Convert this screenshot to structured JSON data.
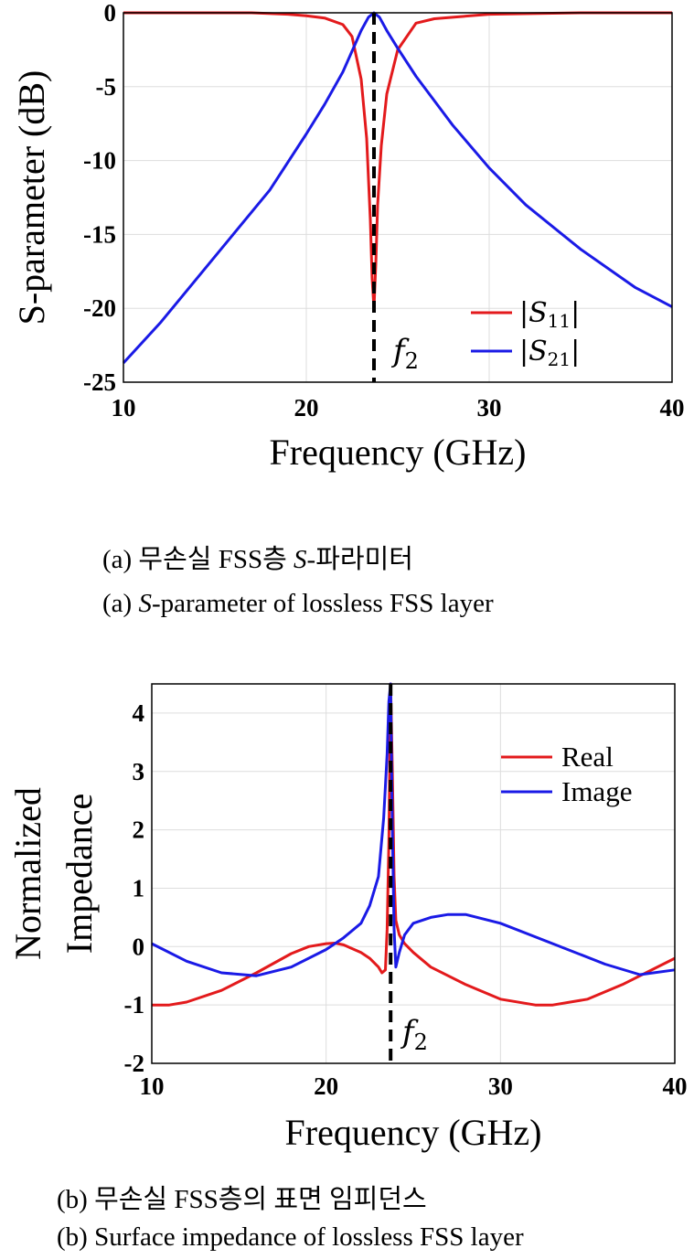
{
  "chart_data": [
    {
      "type": "line",
      "title": "",
      "xlabel": "Frequency (GHz)",
      "ylabel": "S-parameter (dB)",
      "xlim": [
        10,
        40
      ],
      "ylim": [
        -25,
        0
      ],
      "xticks": [
        "10",
        "20",
        "30",
        "40"
      ],
      "yticks": [
        "0",
        "-5",
        "-10",
        "-15",
        "-20",
        "-25"
      ],
      "grid": true,
      "legend_position": "bottom-right",
      "marker_label": "f",
      "marker_label_sub": "2",
      "marker_x": 23.7,
      "series": [
        {
          "name": "|S",
          "name_sub": "11",
          "name_end": "|",
          "color": "#e31a1c",
          "x": [
            10,
            14,
            17,
            19,
            20,
            21,
            22,
            22.5,
            23,
            23.3,
            23.5,
            23.6,
            23.7,
            23.8,
            23.9,
            24.1,
            24.4,
            25,
            26,
            27,
            30,
            35,
            40
          ],
          "y": [
            0,
            0,
            0,
            -0.1,
            -0.2,
            -0.35,
            -0.8,
            -1.6,
            -4.5,
            -8.5,
            -14,
            -18,
            -20,
            -17,
            -13,
            -9,
            -5.5,
            -2.5,
            -0.7,
            -0.4,
            -0.1,
            0,
            0
          ]
        },
        {
          "name": "|S",
          "name_sub": "21",
          "name_end": "|",
          "color": "#1a1ae6",
          "x": [
            10,
            12,
            14,
            16,
            18,
            20,
            21,
            22,
            22.5,
            23,
            23.4,
            23.7,
            24,
            24.4,
            25,
            26,
            28,
            30,
            32,
            35,
            38,
            40
          ],
          "y": [
            -23.7,
            -21,
            -18,
            -15,
            -12,
            -8.2,
            -6.2,
            -4,
            -2.6,
            -1.2,
            -0.3,
            0,
            -0.3,
            -1.2,
            -2.4,
            -4.3,
            -7.6,
            -10.5,
            -13,
            -16,
            -18.6,
            -19.9
          ]
        }
      ]
    },
    {
      "type": "line",
      "title": "",
      "xlabel": "Frequency (GHz)",
      "ylabel_line1": "Normalized",
      "ylabel_line2": "Impedance",
      "xlim": [
        10,
        40
      ],
      "ylim": [
        -2,
        4.5
      ],
      "xticks": [
        "10",
        "20",
        "30",
        "40"
      ],
      "yticks": [
        "4",
        "3",
        "2",
        "1",
        "0",
        "-1",
        "-2"
      ],
      "grid": true,
      "legend_position": "top-right",
      "marker_label": "f",
      "marker_label_sub": "2",
      "marker_x": 23.7,
      "series": [
        {
          "name": "Real",
          "color": "#e31a1c",
          "x": [
            10,
            11,
            12,
            14,
            16,
            18,
            19,
            20,
            20.5,
            21,
            22,
            22.5,
            23,
            23.2,
            23.4,
            23.5,
            23.6,
            23.7,
            23.8,
            23.9,
            24,
            24.2,
            24.5,
            25,
            26,
            28,
            30,
            32,
            33,
            35,
            37,
            40
          ],
          "y": [
            -1,
            -1,
            -0.95,
            -0.75,
            -0.45,
            -0.12,
            0,
            0.05,
            0.06,
            0.03,
            -0.1,
            -0.2,
            -0.35,
            -0.45,
            -0.4,
            0.3,
            1.8,
            4.5,
            3.0,
            1.2,
            0.45,
            0.2,
            0.05,
            -0.1,
            -0.35,
            -0.65,
            -0.9,
            -1.0,
            -1.0,
            -0.9,
            -0.65,
            -0.2
          ]
        },
        {
          "name": "Image",
          "color": "#1a1ae6",
          "x": [
            10,
            12,
            14,
            16,
            18,
            20,
            21,
            22,
            22.5,
            23,
            23.3,
            23.5,
            23.6,
            23.7,
            23.8,
            23.9,
            24,
            24.2,
            24.5,
            25,
            26,
            27,
            28,
            30,
            33,
            36,
            38,
            40
          ],
          "y": [
            0.05,
            -0.25,
            -0.45,
            -0.5,
            -0.35,
            -0.05,
            0.15,
            0.4,
            0.7,
            1.2,
            2.2,
            3.3,
            4.2,
            4.5,
            2.0,
            0.3,
            -0.35,
            -0.1,
            0.2,
            0.4,
            0.5,
            0.55,
            0.55,
            0.4,
            0.05,
            -0.3,
            -0.48,
            -0.4
          ]
        }
      ]
    }
  ],
  "captions": {
    "a_korean_prefix": "(a)  무손실 FSS층 ",
    "a_korean_italic": "S",
    "a_korean_suffix": "-파라미터",
    "a_english_prefix": "(a) ",
    "a_english_italic": "S",
    "a_english_suffix": "-parameter of lossless FSS layer",
    "b_korean": "(b) 무손실 FSS층의 표면 임피던스",
    "b_english": "(b) Surface impedance of lossless FSS layer"
  }
}
